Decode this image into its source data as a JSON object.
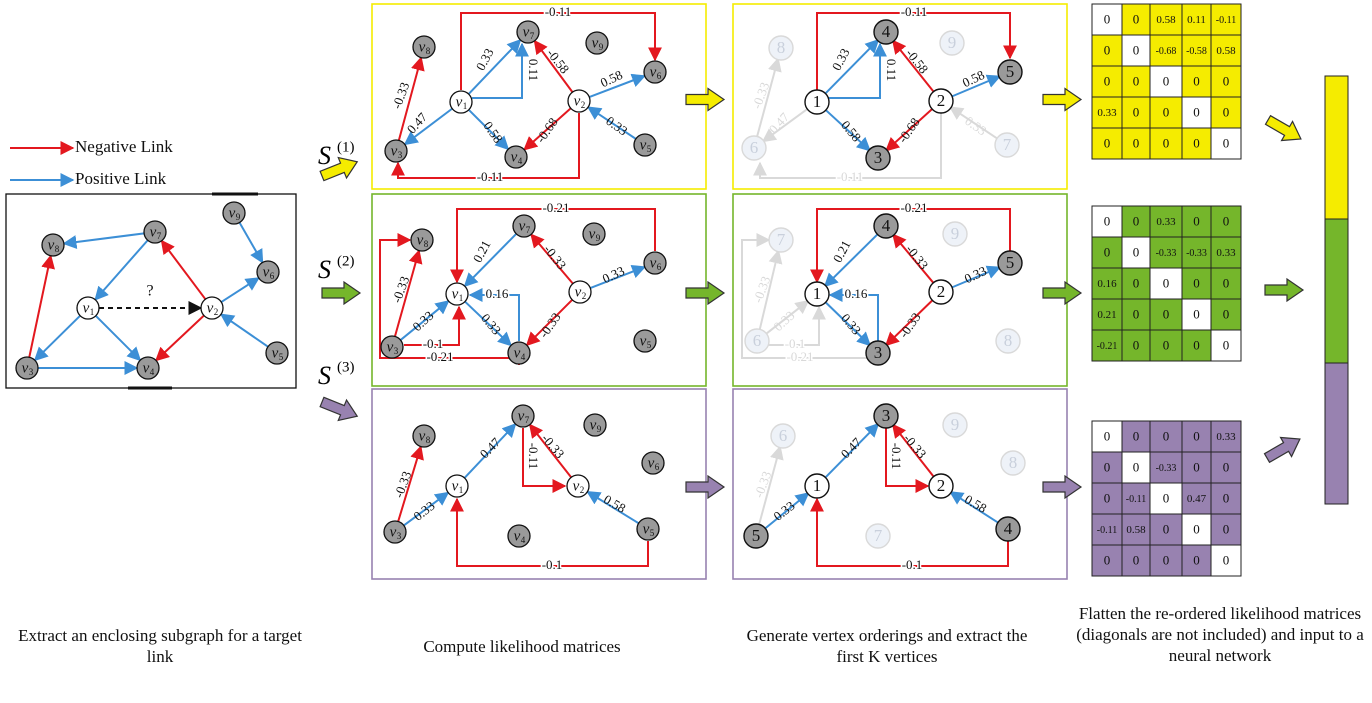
{
  "legend": {
    "negative": {
      "label": "Negative Link",
      "color": "#e3181f"
    },
    "positive": {
      "label": "Positive Link",
      "color": "#3c8fd6"
    }
  },
  "colors": {
    "yellow": "#f5ec00",
    "green": "#75b62b",
    "purple": "#9882b0",
    "node_fill": "#9a9a9a",
    "faded": "#d9d9d9"
  },
  "subgraph": {
    "nodes": [
      "v1",
      "v2",
      "v3",
      "v4",
      "v5",
      "v6",
      "v7",
      "v8",
      "v9"
    ],
    "target_link_label": "?",
    "positive_edges": [
      [
        "v1",
        "v3"
      ],
      [
        "v3",
        "v4"
      ],
      [
        "v1",
        "v4"
      ],
      [
        "v7",
        "v1"
      ],
      [
        "v7",
        "v8"
      ],
      [
        "v9",
        "v6"
      ],
      [
        "v2",
        "v6"
      ],
      [
        "v5",
        "v2"
      ]
    ],
    "negative_edges": [
      [
        "v3",
        "v8"
      ],
      [
        "v2",
        "v7"
      ],
      [
        "v2",
        "v4"
      ]
    ]
  },
  "subgraph_labels": [
    "S(1)",
    "S(2)",
    "S(3)"
  ],
  "panels": [
    {
      "edge_values": [
        "-0.11",
        "0.33",
        "0.11",
        "-0.58",
        "0.58",
        "0.47",
        "0.58",
        "-0.68",
        "0.33",
        "-0.11",
        "-0.33"
      ]
    },
    {
      "edge_values": [
        "-0.21",
        "0.21",
        "-0.33",
        "0.33",
        "0.16",
        "0.33",
        "-0.33",
        "-0.33",
        "0.33",
        "-0.1",
        "-0.21"
      ]
    },
    {
      "edge_values": [
        "0.47",
        "-0.11",
        "-0.33",
        "0.58",
        "-0.33",
        "0.33",
        "-0.1"
      ]
    }
  ],
  "ordering_labels": [
    {
      "nodes": [
        "1",
        "2",
        "3",
        "4",
        "5",
        "6",
        "7",
        "8",
        "9"
      ]
    },
    {
      "nodes": [
        "1",
        "2",
        "3",
        "4",
        "5",
        "6",
        "7",
        "8",
        "9"
      ]
    },
    {
      "nodes": [
        "1",
        "2",
        "3",
        "4",
        "5",
        "6",
        "7",
        "8",
        "9"
      ]
    }
  ],
  "matrices": [
    {
      "color": "yellow",
      "rows": [
        [
          "0",
          "0",
          "0.58",
          "0.11",
          "-0.11"
        ],
        [
          "0",
          "0",
          "-0.68",
          "-0.58",
          "0.58"
        ],
        [
          "0",
          "0",
          "0",
          "0",
          "0"
        ],
        [
          "0.33",
          "0",
          "0",
          "0",
          "0"
        ],
        [
          "0",
          "0",
          "0",
          "0",
          "0"
        ]
      ]
    },
    {
      "color": "green",
      "rows": [
        [
          "0",
          "0",
          "0.33",
          "0",
          "0"
        ],
        [
          "0",
          "0",
          "-0.33",
          "-0.33",
          "0.33"
        ],
        [
          "0.16",
          "0",
          "0",
          "0",
          "0"
        ],
        [
          "0.21",
          "0",
          "0",
          "0",
          "0"
        ],
        [
          "-0.21",
          "0",
          "0",
          "0",
          "0"
        ]
      ]
    },
    {
      "color": "purple",
      "rows": [
        [
          "0",
          "0",
          "0",
          "0",
          "0.33"
        ],
        [
          "0",
          "0",
          "-0.33",
          "0",
          "0"
        ],
        [
          "0",
          "-0.11",
          "0",
          "0.47",
          "0"
        ],
        [
          "-0.11",
          "0.58",
          "0",
          "0",
          "0"
        ],
        [
          "0",
          "0",
          "0",
          "0",
          "0"
        ]
      ]
    }
  ],
  "captions": {
    "step1": "Extract an enclosing subgraph for a target link",
    "step2": "Compute likelihood matrices",
    "step3": "Generate vertex orderings and extract the first K vertices",
    "step4": "Flatten the re-ordered likelihood matrices (diagonals are not included) and input to a neural network"
  }
}
